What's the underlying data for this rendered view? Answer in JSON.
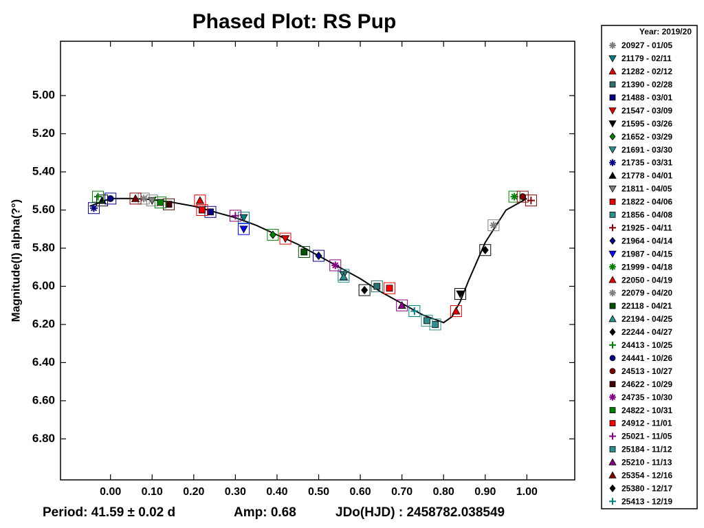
{
  "chart_data": {
    "type": "scatter",
    "title": "Phased Plot: RS Pup",
    "y_label": "Magnitude(I) alpha(?°)",
    "footer": [
      "Period: 41.59 ± 0.02 d",
      "Amp: 0.68",
      "JDo(HJD) : 2458782.038549"
    ],
    "legend_title": "Year: 2019/20",
    "xlim": [
      -0.12,
      1.115
    ],
    "ylim": [
      4.715,
      7.015
    ],
    "invert_y": true,
    "xticks": [
      {
        "value": 0,
        "label": "0.00"
      },
      {
        "value": 0.1,
        "label": "0.10"
      },
      {
        "value": 0.2,
        "label": "0.20"
      },
      {
        "value": 0.3,
        "label": "0.30"
      },
      {
        "value": 0.4,
        "label": "0.40"
      },
      {
        "value": 0.5,
        "label": "0.50"
      },
      {
        "value": 0.6,
        "label": "0.60"
      },
      {
        "value": 0.7,
        "label": "0.70"
      },
      {
        "value": 0.8,
        "label": "0.80"
      },
      {
        "value": 0.9,
        "label": "0.90"
      },
      {
        "value": 1,
        "label": "1.00"
      }
    ],
    "yticks": [
      {
        "value": 5,
        "label": "5.00"
      },
      {
        "value": 5.2,
        "label": "5.20"
      },
      {
        "value": 5.4,
        "label": "5.40"
      },
      {
        "value": 5.6,
        "label": "5.60"
      },
      {
        "value": 5.8,
        "label": "5.80"
      },
      {
        "value": 6,
        "label": "6.00"
      },
      {
        "value": 6.2,
        "label": "6.20"
      },
      {
        "value": 6.4,
        "label": "6.40"
      },
      {
        "value": 6.6,
        "label": "6.60"
      },
      {
        "value": 6.8,
        "label": "6.80"
      }
    ],
    "curve": {
      "color": "#000000",
      "x": [
        -0.05,
        0.0,
        0.05,
        0.1,
        0.15,
        0.2,
        0.25,
        0.3,
        0.35,
        0.4,
        0.45,
        0.5,
        0.55,
        0.6,
        0.65,
        0.7,
        0.75,
        0.8,
        0.82,
        0.84,
        0.86,
        0.9,
        0.95,
        1.0
      ],
      "values": [
        5.58,
        5.54,
        5.54,
        5.545,
        5.56,
        5.58,
        5.61,
        5.64,
        5.68,
        5.73,
        5.78,
        5.84,
        5.9,
        5.96,
        6.03,
        6.09,
        6.15,
        6.19,
        6.16,
        6.08,
        5.97,
        5.77,
        5.6,
        5.54
      ]
    },
    "series": [
      {
        "name": "20927 - 01/05",
        "color": "#808080",
        "marker": "asterisk",
        "x": [
          0.92
        ],
        "values": [
          5.68
        ]
      },
      {
        "name": "21179 - 02/11",
        "color": "#008080",
        "marker": "triangle-down",
        "x": [
          0.32
        ],
        "values": [
          5.64
        ]
      },
      {
        "name": "21282 - 02/12",
        "color": "#e00000",
        "marker": "triangle-up",
        "x": [
          0.215
        ],
        "values": [
          5.55
        ]
      },
      {
        "name": "21390 - 02/28",
        "color": "#2f6f6f",
        "marker": "square",
        "x": [
          0.64
        ],
        "values": [
          6.0
        ]
      },
      {
        "name": "21488 - 03/01",
        "color": "#000080",
        "marker": "square",
        "x": [
          0.24
        ],
        "values": [
          5.61
        ]
      },
      {
        "name": "21547 - 03/09",
        "color": "#e00000",
        "marker": "triangle-down",
        "x": [
          0.42
        ],
        "values": [
          5.75
        ]
      },
      {
        "name": "21595 - 03/26",
        "color": "#000000",
        "marker": "triangle-down",
        "x": [
          0.84
        ],
        "values": [
          6.04
        ]
      },
      {
        "name": "21652 - 03/29",
        "color": "#008000",
        "marker": "diamond",
        "x": [
          0.39
        ],
        "values": [
          5.73
        ]
      },
      {
        "name": "21691 - 03/30",
        "color": "#2f8f8f",
        "marker": "triangle-down",
        "x": [
          0.56
        ],
        "values": [
          5.94
        ]
      },
      {
        "name": "21735 - 03/31",
        "color": "#000080",
        "marker": "asterisk",
        "x": [
          -0.04
        ],
        "values": [
          5.59
        ]
      },
      {
        "name": "21778 - 04/01",
        "color": "#000000",
        "marker": "triangle-up",
        "x": [
          -0.02
        ],
        "values": [
          5.55
        ]
      },
      {
        "name": "21811 - 04/05",
        "color": "#808080",
        "marker": "triangle-down",
        "x": [
          0.1
        ],
        "values": [
          5.55
        ]
      },
      {
        "name": "21822 - 04/06",
        "color": "#e00000",
        "marker": "square",
        "x": [
          0.22
        ],
        "values": [
          5.6
        ]
      },
      {
        "name": "21856 - 04/08",
        "color": "#2f8f8f",
        "marker": "square",
        "x": [
          0.78
        ],
        "values": [
          6.2
        ]
      },
      {
        "name": "21925 - 04/11",
        "color": "#800000",
        "marker": "plus",
        "x": [
          1.01
        ],
        "values": [
          5.55
        ]
      },
      {
        "name": "21964 - 04/14",
        "color": "#000080",
        "marker": "diamond",
        "x": [
          0.5
        ],
        "values": [
          5.84
        ]
      },
      {
        "name": "21987 - 04/15",
        "color": "#0000ff",
        "marker": "triangle-down",
        "x": [
          0.32
        ],
        "values": [
          5.7
        ]
      },
      {
        "name": "21999 - 04/18",
        "color": "#008000",
        "marker": "asterisk",
        "x": [
          0.97
        ],
        "values": [
          5.53
        ]
      },
      {
        "name": "22050 - 04/19",
        "color": "#e00000",
        "marker": "triangle-up",
        "x": [
          0.83
        ],
        "values": [
          6.13
        ]
      },
      {
        "name": "22079 - 04/20",
        "color": "#808080",
        "marker": "asterisk",
        "x": [
          0.08
        ],
        "values": [
          5.54
        ]
      },
      {
        "name": "22118 - 04/21",
        "color": "#005000",
        "marker": "square",
        "x": [
          0.465
        ],
        "values": [
          5.82
        ]
      },
      {
        "name": "22194 - 04/25",
        "color": "#2f8f8f",
        "marker": "triangle-up",
        "x": [
          0.56
        ],
        "values": [
          5.95
        ]
      },
      {
        "name": "22244 - 04/27",
        "color": "#000000",
        "marker": "diamond",
        "x": [
          0.61
        ],
        "values": [
          6.02
        ]
      },
      {
        "name": "24413 - 10/25",
        "color": "#008000",
        "marker": "plus",
        "x": [
          -0.03
        ],
        "values": [
          5.53
        ]
      },
      {
        "name": "24441 - 10/26",
        "color": "#000080",
        "marker": "circle",
        "x": [
          0.0
        ],
        "values": [
          5.54
        ]
      },
      {
        "name": "24513 - 10/27",
        "color": "#800000",
        "marker": "circle",
        "x": [
          0.99
        ],
        "values": [
          5.53
        ]
      },
      {
        "name": "24622 - 10/29",
        "color": "#400000",
        "marker": "square",
        "x": [
          0.14
        ],
        "values": [
          5.57
        ]
      },
      {
        "name": "24735 - 10/30",
        "color": "#800080",
        "marker": "asterisk",
        "x": [
          0.54
        ],
        "values": [
          5.89
        ]
      },
      {
        "name": "24822 - 10/31",
        "color": "#008000",
        "marker": "square",
        "x": [
          0.12
        ],
        "values": [
          5.56
        ]
      },
      {
        "name": "24912 - 11/01",
        "color": "#ff0000",
        "marker": "square",
        "x": [
          0.67
        ],
        "values": [
          6.01
        ]
      },
      {
        "name": "25021 - 11/05",
        "color": "#800080",
        "marker": "plus",
        "x": [
          0.3
        ],
        "values": [
          5.63
        ]
      },
      {
        "name": "25184 - 11/12",
        "color": "#2f8f8f",
        "marker": "square",
        "x": [
          0.76
        ],
        "values": [
          6.18
        ]
      },
      {
        "name": "25210 - 11/13",
        "color": "#800080",
        "marker": "triangle-up",
        "x": [
          0.7
        ],
        "values": [
          6.1
        ]
      },
      {
        "name": "25354 - 12/16",
        "color": "#800000",
        "marker": "triangle-up",
        "x": [
          0.06
        ],
        "values": [
          5.54
        ]
      },
      {
        "name": "25380 - 12/17",
        "color": "#000000",
        "marker": "diamond",
        "x": [
          0.9
        ],
        "values": [
          5.81
        ]
      },
      {
        "name": "25413 - 12/19",
        "color": "#008080",
        "marker": "plus",
        "x": [
          0.73
        ],
        "values": [
          6.13
        ]
      }
    ]
  }
}
